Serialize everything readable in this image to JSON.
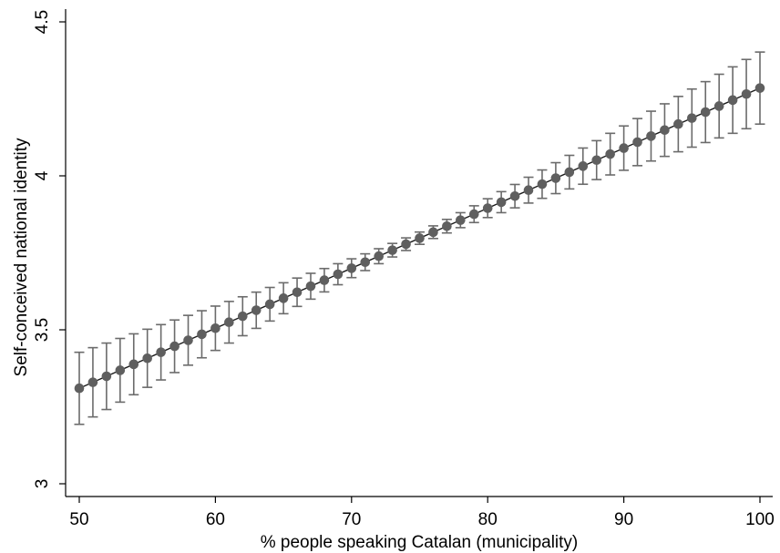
{
  "chart_data": {
    "type": "scatter",
    "xlabel": "% people speaking Catalan (municipality)",
    "ylabel": "Self-conceived national identity",
    "xlim": [
      49.5,
      101
    ],
    "ylim": [
      3,
      4.5
    ],
    "xticks": [
      50,
      60,
      70,
      80,
      90,
      100
    ],
    "yticks": [
      3,
      3.5,
      4,
      4.5
    ],
    "x_tick_labels": [
      "50",
      "60",
      "70",
      "80",
      "90",
      "100"
    ],
    "y_tick_labels": [
      "3",
      "3.5",
      "4",
      "4.5"
    ],
    "grid": false,
    "series": [
      {
        "x_start": 50,
        "x_end": 100,
        "x_step": 1,
        "y_at_x_start": 3.31,
        "y_at_x_end": 4.285,
        "ci_half_width_at_x_start": 0.117,
        "ci_half_width_at_center": 0.02,
        "ci_half_width_at_x_end": 0.117,
        "error_bars": "95% CI",
        "marker": "circle",
        "color": "#5f5f5f"
      }
    ]
  }
}
